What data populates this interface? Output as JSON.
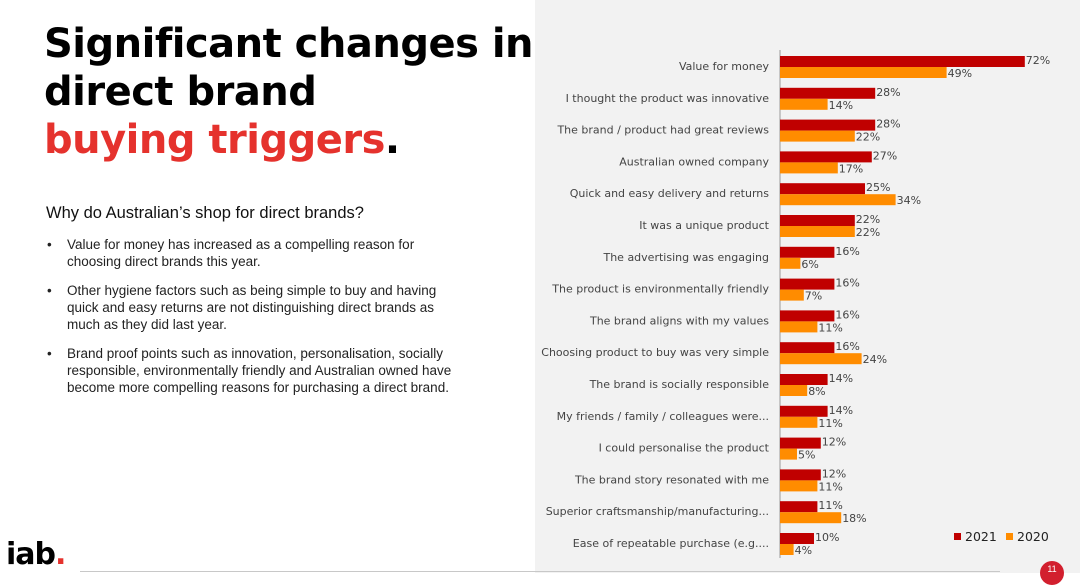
{
  "slide": {
    "title_line1": "Significant changes in",
    "title_line2": "direct brand",
    "title_accent": "buying triggers",
    "title_period": ".",
    "subtitle": "Why do Australian’s shop for direct brands?",
    "bullets": [
      "Value for money has increased as a compelling reason for choosing direct brands this year.",
      "Other hygiene factors such as being simple to buy and having quick and easy returns are not distinguishing direct brands as much as they did last year.",
      "Brand proof points such as innovation, personalisation, socially responsible, environmentally friendly and Australian owned have become more compelling reasons for purchasing a direct brand."
    ],
    "logo_text": "iab",
    "logo_dot": ".",
    "page_number": "11"
  },
  "colors": {
    "accent": "#e5322d",
    "series_2021": "#c00000",
    "series_2020": "#ff8c00",
    "panel_bg": "#f2f2f2"
  },
  "chart_data": {
    "type": "bar",
    "orientation": "horizontal",
    "title": "",
    "xlim": [
      0,
      100
    ],
    "value_suffix": "%",
    "legend_position": "bottom-right",
    "categories": [
      "Value for money",
      "I thought the product was innovative",
      "The brand / product had great reviews",
      "Australian owned company",
      "Quick and easy delivery and returns",
      "It was a unique product",
      "The advertising was engaging",
      "The product is environmentally friendly",
      "The brand aligns with my values",
      "Choosing product to buy was very simple",
      "The brand is socially responsible",
      "My friends / family / colleagues were...",
      "I could personalise the product",
      "The brand story resonated with me",
      "Superior craftsmanship/manufacturing...",
      "Ease of repeatable purchase (e.g...."
    ],
    "series": [
      {
        "name": "2021",
        "color": "#c00000",
        "values": [
          72,
          28,
          28,
          27,
          25,
          22,
          16,
          16,
          16,
          16,
          14,
          14,
          12,
          12,
          11,
          10
        ]
      },
      {
        "name": "2020",
        "color": "#ff8c00",
        "values": [
          49,
          14,
          22,
          17,
          34,
          22,
          6,
          7,
          11,
          24,
          8,
          11,
          5,
          11,
          18,
          4
        ]
      }
    ]
  }
}
